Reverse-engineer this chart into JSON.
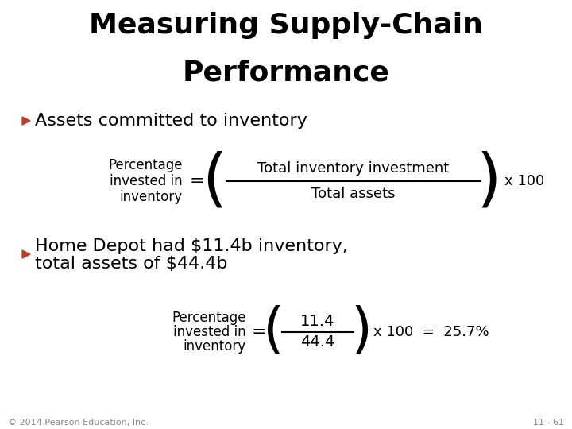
{
  "title_line1": "Measuring Supply-Chain",
  "title_line2": "Performance",
  "bullet_color": "#c0392b",
  "bullet1_text": "Assets committed to inventory",
  "bullet2_line1": "Home Depot had $11.4b inventory,",
  "bullet2_line2": "total assets of $44.4b",
  "formula1_left_line1": "Percentage",
  "formula1_left_line2": "invested in",
  "formula1_left_line3": "inventory",
  "formula1_numerator": "Total inventory investment",
  "formula1_denominator": "Total assets",
  "formula1_right": "x 100",
  "formula2_left_line1": "Percentage",
  "formula2_left_line2": "invested in",
  "formula2_left_line3": "inventory",
  "formula2_numerator": "11.4",
  "formula2_denominator": "44.4",
  "formula2_right": "x 100  =  25.7%",
  "footer_left": "© 2014 Pearson Education, Inc.",
  "footer_right": "11 - 61",
  "bg_color": "#ffffff",
  "text_color": "#000000",
  "footer_color": "#888888"
}
